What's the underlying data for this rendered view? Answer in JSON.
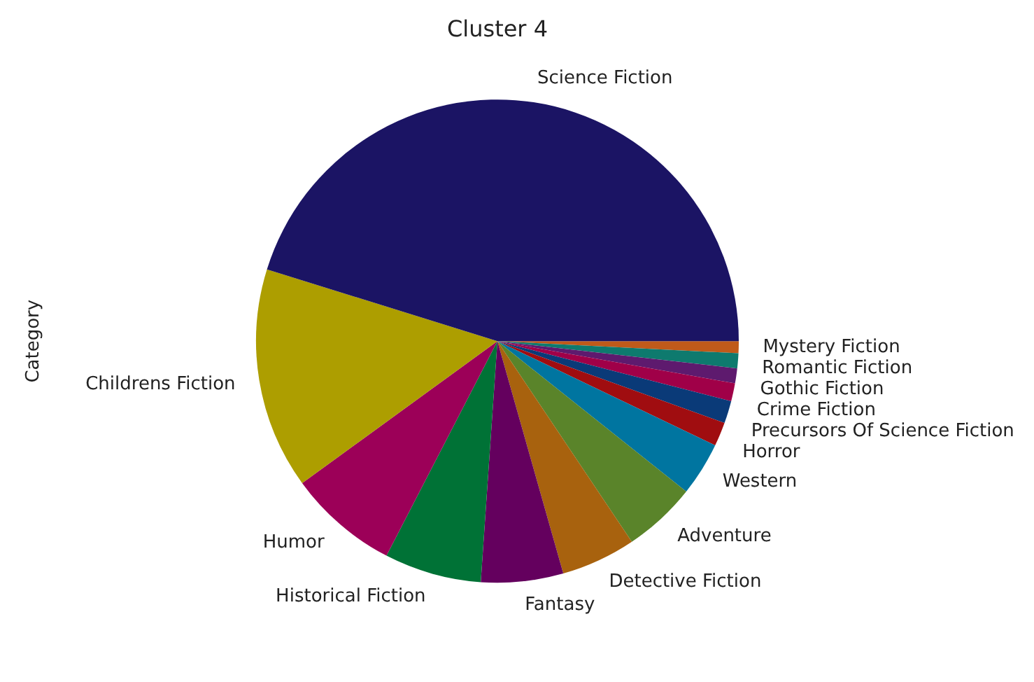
{
  "chart_data": {
    "type": "pie",
    "title": "Cluster 4",
    "ylabel": "Category",
    "categories": [
      "Science Fiction",
      "Childrens Fiction",
      "Humor",
      "Historical Fiction",
      "Fantasy",
      "Detective Fiction",
      "Adventure",
      "Western",
      "Horror",
      "Precursors Of Science Fiction",
      "Crime Fiction",
      "Gothic Fiction",
      "Romantic Fiction",
      "Mystery Fiction"
    ],
    "values": [
      45.2,
      14.8,
      7.4,
      6.5,
      5.5,
      5.0,
      4.9,
      3.6,
      1.6,
      1.5,
      1.2,
      1.0,
      1.0,
      0.8
    ],
    "colors": [
      "#1b1464",
      "#ad9e00",
      "#9c0058",
      "#007236",
      "#64005e",
      "#a8620e",
      "#5a842a",
      "#0075a0",
      "#a00d10",
      "#0a3a78",
      "#a00048",
      "#5e1a6e",
      "#0e7a6e",
      "#c05a1a"
    ],
    "legend": false
  }
}
